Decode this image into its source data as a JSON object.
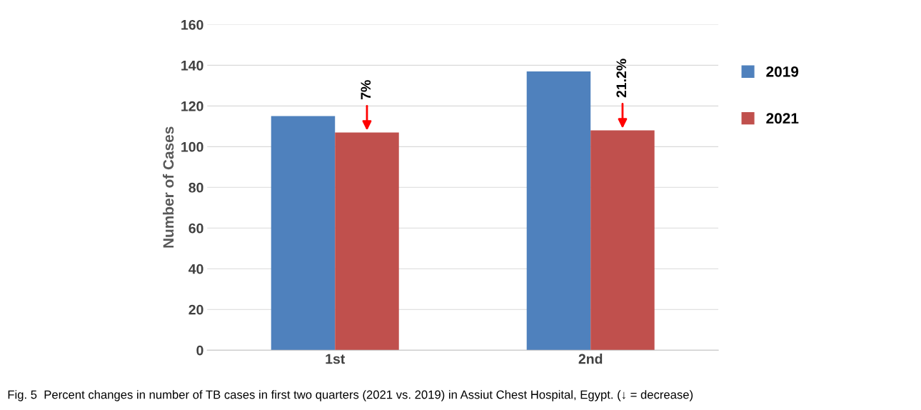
{
  "chart_data": {
    "type": "bar",
    "ylabel": "Number of Cases",
    "categories": [
      "1st",
      "2nd"
    ],
    "series": [
      {
        "name": "2019",
        "color": "#4f81bd",
        "values": [
          115,
          137
        ]
      },
      {
        "name": "2021",
        "color": "#c0504d",
        "values": [
          107,
          108
        ]
      }
    ],
    "ylim": [
      0,
      160
    ],
    "yticks": [
      0,
      20,
      40,
      60,
      80,
      100,
      120,
      140,
      160
    ],
    "grid": "y",
    "legend": "right",
    "annotations": [
      "7%",
      "21.2%",
      "Fig. 5  Percent changes in number of TB cases in first two quarters (2021 vs. 2019) in Assiut Chest Hospital, Egypt. (↓ = decrease)"
    ]
  }
}
